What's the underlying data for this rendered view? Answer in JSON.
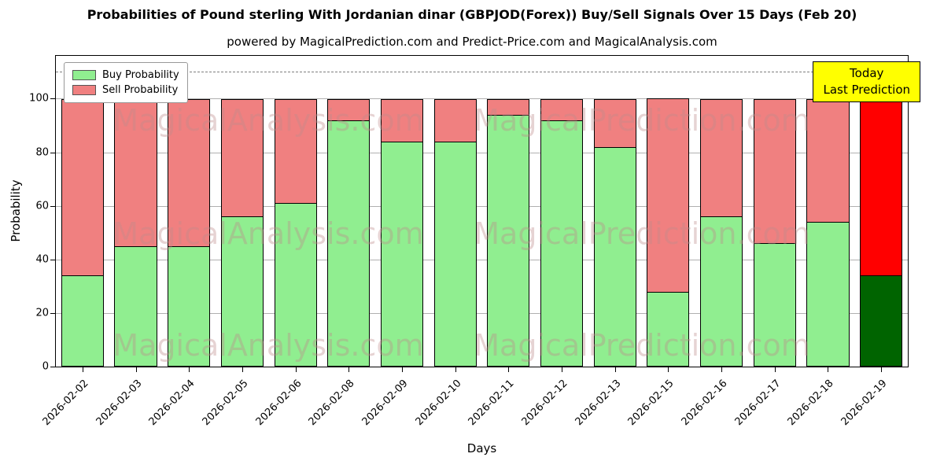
{
  "figure": {
    "title": "Probabilities of Pound sterling With Jordanian dinar (GBPJOD(Forex)) Buy/Sell Signals Over 15 Days (Feb 20)",
    "subtitle": "powered by MagicalPrediction.com and Predict-Price.com and MagicalAnalysis.com"
  },
  "axes": {
    "xlabel": "Days",
    "ylabel": "Probability"
  },
  "legend": {
    "items": [
      {
        "label": "Buy Probability",
        "color": "#90ee90"
      },
      {
        "label": "Sell Probability",
        "color": "#f08080"
      }
    ]
  },
  "annotation": {
    "line1": "Today",
    "line2": "Last Prediction",
    "bg_color": "#ffff00"
  },
  "watermark": {
    "analysis": "MagicalAnalysis.com",
    "prediction": "MagicalPrediction.com"
  },
  "chart_data": {
    "type": "bar",
    "stacked": true,
    "title": "Probabilities of Pound sterling With Jordanian dinar (GBPJOD(Forex)) Buy/Sell Signals Over 15 Days (Feb 20)",
    "xlabel": "Days",
    "ylabel": "Probability",
    "ylim": [
      0,
      116
    ],
    "yticks": [
      0,
      20,
      40,
      60,
      80,
      100
    ],
    "dashed_line_y": 110,
    "grid": "horizontal",
    "legend_position": "upper left",
    "categories": [
      "2026-02-02",
      "2026-02-03",
      "2026-02-04",
      "2026-02-05",
      "2026-02-06",
      "2026-02-08",
      "2026-02-09",
      "2026-02-10",
      "2026-02-11",
      "2026-02-12",
      "2026-02-13",
      "2026-02-15",
      "2026-02-16",
      "2026-02-17",
      "2026-02-18",
      "2026-02-19"
    ],
    "series": [
      {
        "name": "Buy Probability",
        "color": "#90ee90",
        "values": [
          34,
          45,
          45,
          56,
          61,
          92,
          84,
          84,
          94,
          92,
          82,
          28,
          56,
          46,
          54,
          34
        ]
      },
      {
        "name": "Sell Probability",
        "color": "#f08080",
        "values": [
          66,
          55,
          55,
          44,
          39,
          8,
          16,
          16,
          6,
          8,
          18,
          72,
          44,
          54,
          46,
          76
        ]
      }
    ],
    "today": {
      "index": 15,
      "category": "2026-02-19",
      "buy": 34,
      "sell_top": 110,
      "buy_color": "#006400",
      "sell_color": "#ff0000"
    }
  }
}
